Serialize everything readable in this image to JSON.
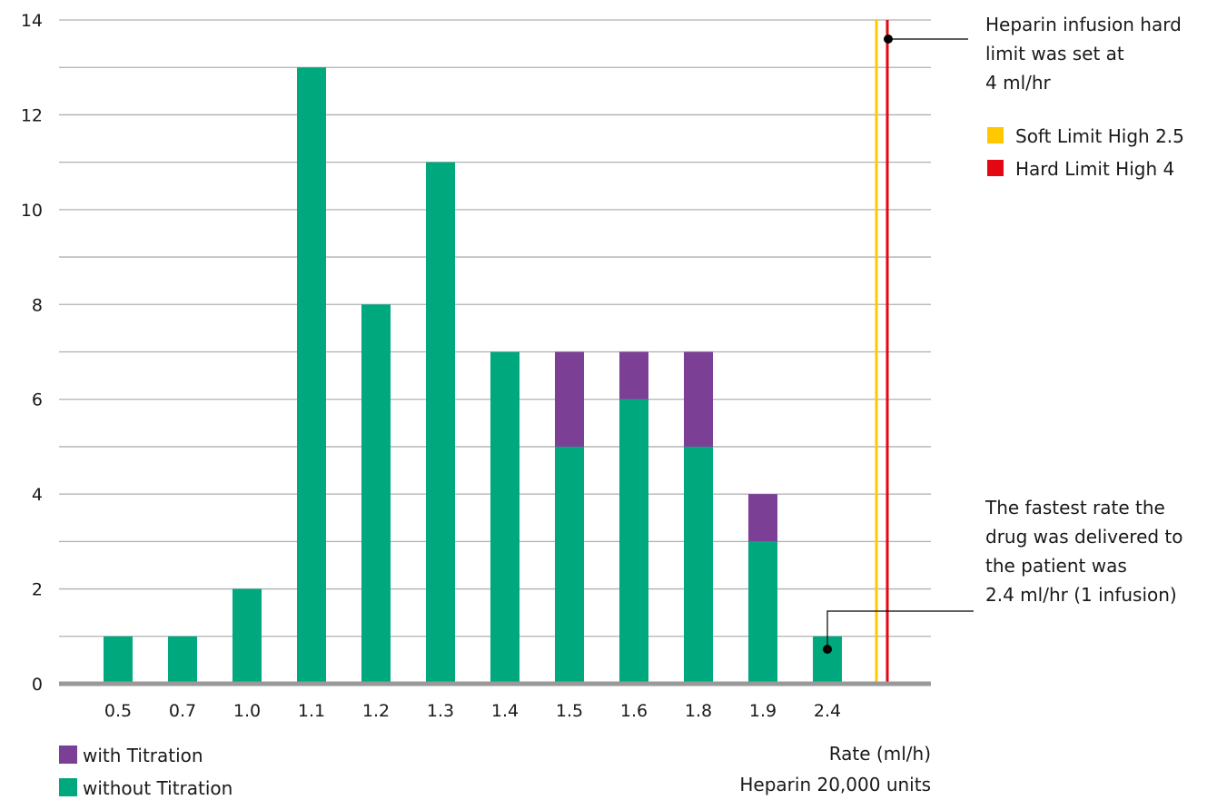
{
  "chart_data": {
    "type": "bar",
    "stacked": true,
    "categories": [
      "0.5",
      "0.7",
      "1.0",
      "1.1",
      "1.2",
      "1.3",
      "1.4",
      "1.5",
      "1.6",
      "1.8",
      "1.9",
      "2.4"
    ],
    "series": [
      {
        "name": "without Titration",
        "color": "#00a87e",
        "values": [
          1,
          1,
          2,
          13,
          8,
          11,
          7,
          5,
          6,
          5,
          3,
          1
        ]
      },
      {
        "name": "with Titration",
        "color": "#7b3f96",
        "values": [
          0,
          0,
          0,
          0,
          0,
          0,
          0,
          2,
          1,
          2,
          1,
          0
        ]
      }
    ],
    "ylim": [
      0,
      14
    ],
    "y_ticks": [
      "0",
      "2",
      "4",
      "6",
      "8",
      "10",
      "12",
      "14"
    ],
    "grid": true,
    "xlabel": "Rate (ml/h)",
    "xlabel_sub": "Heparin 20,000 units",
    "legend_placement": "bottom-left",
    "limits": [
      {
        "name": "Soft Limit High 2.5",
        "value": 2.5,
        "color": "#ffc800"
      },
      {
        "name": "Hard Limit High 4",
        "value": 4,
        "color": "#e30613"
      }
    ],
    "annotations": [
      {
        "lines": [
          "Heparin infusion hard",
          "limit was set at",
          "4 ml/hr"
        ]
      },
      {
        "lines": [
          "The fastest rate the",
          "drug was delivered to",
          "the patient was",
          "2.4 ml/hr (1 infusion)"
        ]
      }
    ]
  }
}
